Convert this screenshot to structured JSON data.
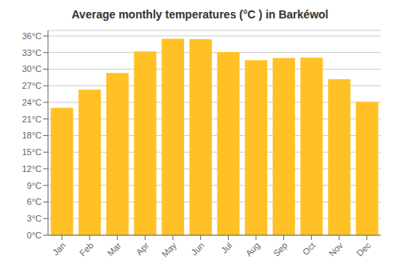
{
  "chart_data": {
    "type": "bar",
    "title": "Average monthly temperatures (°C ) in Barkéwol",
    "categories": [
      "Jan",
      "Feb",
      "Mar",
      "Apr",
      "May",
      "Jun",
      "Jul",
      "Aug",
      "Sep",
      "Oct",
      "Nov",
      "Dec"
    ],
    "values": [
      23.0,
      26.3,
      29.3,
      33.2,
      35.5,
      35.4,
      33.1,
      31.6,
      32.0,
      32.1,
      28.2,
      24.1
    ],
    "color": "#FFC125",
    "ylim": [
      0,
      37
    ],
    "yticks": [
      {
        "value": 0,
        "label": "0°C"
      },
      {
        "value": 3,
        "label": "3°C"
      },
      {
        "value": 6,
        "label": "6°C"
      },
      {
        "value": 9,
        "label": "9°C"
      },
      {
        "value": 12,
        "label": "12°C"
      },
      {
        "value": 15,
        "label": "15°C"
      },
      {
        "value": 18,
        "label": "18°C"
      },
      {
        "value": 21,
        "label": "21°C"
      },
      {
        "value": 24,
        "label": "24°C"
      },
      {
        "value": 27,
        "label": "27°C"
      },
      {
        "value": 30,
        "label": "30°C"
      },
      {
        "value": 33,
        "label": "33°C"
      },
      {
        "value": 36,
        "label": "36°C"
      }
    ],
    "grid": true
  }
}
